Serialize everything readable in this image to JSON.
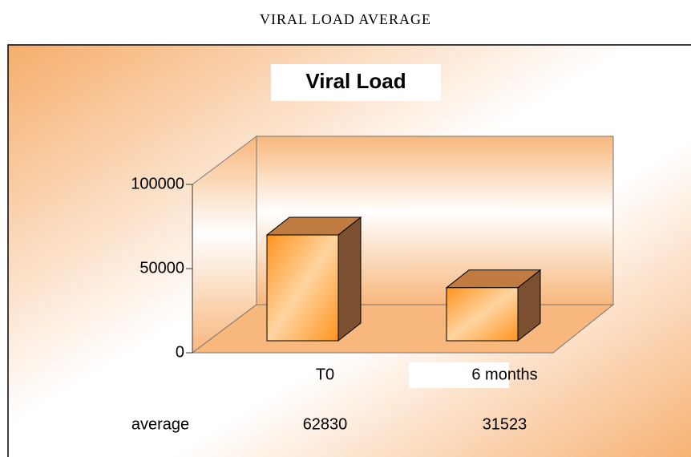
{
  "page_title": "VIRAL LOAD AVERAGE",
  "chart_data": {
    "type": "bar3d",
    "title": "Viral Load",
    "categories": [
      "T0",
      "6 months"
    ],
    "series": [
      {
        "name": "average",
        "color": "#ff9a2e",
        "values": [
          62830,
          31523
        ]
      }
    ],
    "ylim": [
      0,
      100000
    ],
    "yticks": [
      0,
      50000,
      100000
    ]
  }
}
